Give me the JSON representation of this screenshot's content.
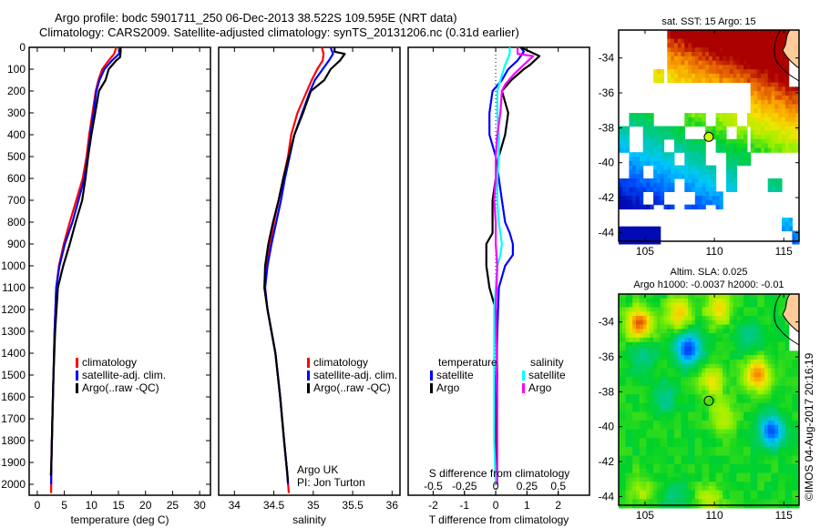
{
  "header": {
    "line1": "Argo profile: bodc 5901711_250 06-Dec-2013 38.522S 109.595E (NRT data)",
    "line2": "Climatology: CARS2009. Satellite-adjusted climatology: synTS_20131206.nc (0.31d earlier)"
  },
  "colors": {
    "climatology": "#ff0000",
    "satellite": "#0000ff",
    "argo": "#000000",
    "sal_satellite": "#00ffff",
    "sal_argo": "#ff00ff",
    "land": "#ffcc99"
  },
  "chart_data": [
    {
      "id": "temperature",
      "type": "line",
      "xlabel": "temperature (deg C)",
      "ylabel": "",
      "xlim": [
        -1.5,
        32
      ],
      "ylim": [
        2050,
        0
      ],
      "xticks": [
        0,
        5,
        10,
        15,
        20,
        25,
        30
      ],
      "yticks": [
        0,
        100,
        200,
        300,
        400,
        500,
        600,
        700,
        800,
        900,
        1000,
        1100,
        1200,
        1300,
        1400,
        1500,
        1600,
        1700,
        1800,
        1900,
        2000
      ],
      "legend": {
        "placement": "center-left",
        "entries": [
          "climatology",
          "satellite-adj. clim.",
          "Argo(..raw -QC)"
        ]
      },
      "series": [
        {
          "name": "climatology",
          "color": "#ff0000",
          "x": [
            14.6,
            14.2,
            13.2,
            12.0,
            11.3,
            10.8,
            10.2,
            9.6,
            9.1,
            8.4,
            7.2,
            6.0,
            4.9,
            4.0,
            3.5,
            3.2,
            3.0,
            2.8,
            2.6,
            2.55
          ],
          "depth": [
            0,
            30,
            60,
            100,
            150,
            200,
            300,
            400,
            500,
            600,
            700,
            800,
            900,
            1000,
            1100,
            1300,
            1500,
            1700,
            1900,
            2040
          ]
        },
        {
          "name": "satellite-adj. clim.",
          "color": "#0000ff",
          "x": [
            15.4,
            15.1,
            13.8,
            12.4,
            11.5,
            10.9,
            10.4,
            9.8,
            9.3,
            8.7,
            7.6,
            6.5,
            5.1,
            4.1,
            3.5,
            3.2,
            3.0,
            2.8,
            2.6,
            2.55
          ],
          "depth": [
            0,
            30,
            60,
            100,
            150,
            200,
            300,
            400,
            500,
            600,
            700,
            800,
            900,
            1000,
            1100,
            1300,
            1500,
            1700,
            1900,
            2000
          ]
        },
        {
          "name": "Argo(..raw -QC)",
          "color": "#000000",
          "x": [
            15.4,
            15.4,
            15.3,
            14.6,
            13.2,
            12.6,
            11.4,
            10.7,
            10.0,
            9.4,
            8.9,
            8.3,
            7.1,
            6.0,
            4.8,
            3.8,
            3.3,
            3.0,
            2.8,
            2.6,
            2.5
          ],
          "depth": [
            0,
            20,
            45,
            60,
            100,
            150,
            200,
            300,
            400,
            500,
            600,
            700,
            800,
            900,
            1000,
            1100,
            1300,
            1500,
            1700,
            1900,
            1960
          ]
        }
      ]
    },
    {
      "id": "salinity",
      "type": "line",
      "xlabel": "salinity",
      "xlim": [
        33.8,
        36.1
      ],
      "ylim": [
        2050,
        0
      ],
      "xticks": [
        34,
        34.5,
        35,
        35.5,
        36
      ],
      "legend": {
        "placement": "center-right",
        "entries": [
          "climatology",
          "satellite-adj. clim.",
          "Argo(..raw -QC)"
        ]
      },
      "annotation": [
        "Argo UK",
        "PI: Jon Turton"
      ],
      "series": [
        {
          "name": "climatology",
          "color": "#ff0000",
          "x": [
            35.11,
            35.13,
            35.12,
            35.05,
            34.98,
            34.92,
            34.8,
            34.72,
            34.68,
            34.62,
            34.56,
            34.5,
            34.45,
            34.4,
            34.38,
            34.42,
            34.52,
            34.58,
            34.63,
            34.67,
            34.69
          ],
          "depth": [
            0,
            30,
            60,
            100,
            150,
            200,
            300,
            400,
            500,
            600,
            700,
            800,
            900,
            1000,
            1100,
            1200,
            1400,
            1600,
            1800,
            1950,
            2040
          ]
        },
        {
          "name": "satellite-adj. clim.",
          "color": "#0000ff",
          "x": [
            35.22,
            35.25,
            35.2,
            35.12,
            35.02,
            34.96,
            34.86,
            34.76,
            34.7,
            34.64,
            34.59,
            34.53,
            34.47,
            34.42,
            34.39,
            34.42,
            34.52,
            34.58,
            34.63,
            34.67,
            34.68
          ],
          "depth": [
            0,
            30,
            60,
            100,
            150,
            200,
            300,
            400,
            500,
            600,
            700,
            800,
            900,
            1000,
            1100,
            1200,
            1400,
            1600,
            1800,
            1950,
            2000
          ]
        },
        {
          "name": "Argo(..raw -QC)",
          "color": "#000000",
          "x": [
            35.27,
            35.27,
            35.4,
            35.34,
            35.22,
            35.14,
            34.97,
            34.87,
            34.76,
            34.69,
            34.62,
            34.56,
            34.49,
            34.43,
            34.39,
            34.38,
            34.42,
            34.52,
            34.58,
            34.63,
            34.67,
            34.68
          ],
          "depth": [
            0,
            20,
            30,
            60,
            100,
            150,
            200,
            300,
            400,
            500,
            600,
            700,
            800,
            900,
            1000,
            1100,
            1200,
            1400,
            1600,
            1800,
            1950,
            1990
          ]
        }
      ]
    },
    {
      "id": "difference",
      "type": "line",
      "xlabel": "T difference from climatology",
      "xlabel_top": "S difference from climatology",
      "xlim": [
        -2.8,
        3.0
      ],
      "ylim": [
        2050,
        0
      ],
      "xticks": [
        -2,
        -1,
        0,
        1,
        2
      ],
      "xticks_s": [
        -0.5,
        -0.25,
        0,
        0.25,
        0.5
      ],
      "legend": {
        "placement": "center",
        "headers": [
          "temperature",
          "salinity"
        ],
        "entries": [
          "satellite",
          "Argo",
          "satellite",
          "Argo"
        ]
      },
      "series": [
        {
          "name": "temperature satellite",
          "color": "#0000ff",
          "x": [
            0.8,
            0.9,
            0.7,
            0.4,
            0.2,
            -0.1,
            -0.2,
            -0.2,
            0.0,
            0.1,
            0.2,
            0.3,
            0.45,
            0.55,
            0.55,
            0.3,
            0.1,
            0.05,
            0.0,
            0.0
          ],
          "depth": [
            0,
            20,
            60,
            100,
            150,
            200,
            300,
            400,
            500,
            600,
            700,
            800,
            850,
            900,
            950,
            1000,
            1100,
            1300,
            1600,
            2000
          ]
        },
        {
          "name": "temperature Argo",
          "color": "#000000",
          "x": [
            0.8,
            1.4,
            1.1,
            0.9,
            0.5,
            0.2,
            0.4,
            0.3,
            0.1,
            0.0,
            -0.1,
            -0.1,
            -0.1,
            -0.3,
            -0.3,
            -0.2,
            0.0,
            0.05,
            0.0
          ],
          "depth": [
            0,
            40,
            80,
            100,
            150,
            200,
            300,
            400,
            500,
            600,
            700,
            800,
            850,
            900,
            1000,
            1100,
            1200,
            1500,
            2000
          ]
        },
        {
          "name": "salinity satellite",
          "color": "#00ffff",
          "x": [
            0.45,
            0.45,
            0.3,
            0.15,
            0.05,
            0.05,
            0.1,
            0.1,
            0.05,
            0.05,
            0.1,
            0.15,
            0.2,
            0.15,
            0.05,
            -0.05,
            -0.05,
            -0.05,
            0.0
          ],
          "depth": [
            0,
            30,
            80,
            150,
            200,
            300,
            400,
            500,
            600,
            700,
            800,
            850,
            900,
            950,
            1000,
            1200,
            1500,
            1800,
            2000
          ]
        },
        {
          "name": "salinity Argo",
          "color": "#ff00ff",
          "x": [
            0.7,
            0.7,
            1.2,
            0.9,
            0.6,
            0.3,
            0.2,
            0.15,
            0.05,
            0.0,
            0.0,
            -0.05,
            0.0,
            0.0,
            0.05,
            0.0,
            0.05,
            0.05
          ],
          "depth": [
            0,
            30,
            40,
            80,
            120,
            170,
            200,
            300,
            400,
            500,
            600,
            700,
            800,
            900,
            1000,
            1200,
            1600,
            2000
          ]
        }
      ]
    },
    {
      "id": "sst-map",
      "type": "heatmap",
      "title": "sat. SST: 15 Argo: 15",
      "xlim": [
        103.1,
        116.1
      ],
      "ylim": [
        -44.5,
        -32.4
      ],
      "xticks": [
        105,
        110,
        115
      ],
      "yticks": [
        -34,
        -36,
        -38,
        -40,
        -42,
        -44
      ],
      "marker": {
        "lon": 109.595,
        "lat": -38.522,
        "color": "#ccff00"
      }
    },
    {
      "id": "sla-map",
      "type": "heatmap",
      "title": "Altim. SLA: 0.025",
      "subtitle": "Argo h1000: -0.0037 h2000: -0.01",
      "xlim": [
        103.1,
        116.1
      ],
      "ylim": [
        -44.5,
        -32.4
      ],
      "xticks": [
        105,
        110,
        115
      ],
      "yticks": [
        -34,
        -36,
        -38,
        -40,
        -42,
        -44
      ],
      "marker": {
        "lon": 109.595,
        "lat": -38.522
      }
    }
  ],
  "footer": {
    "credit": "©IMOS 04-Aug-2017 20:16:19"
  }
}
